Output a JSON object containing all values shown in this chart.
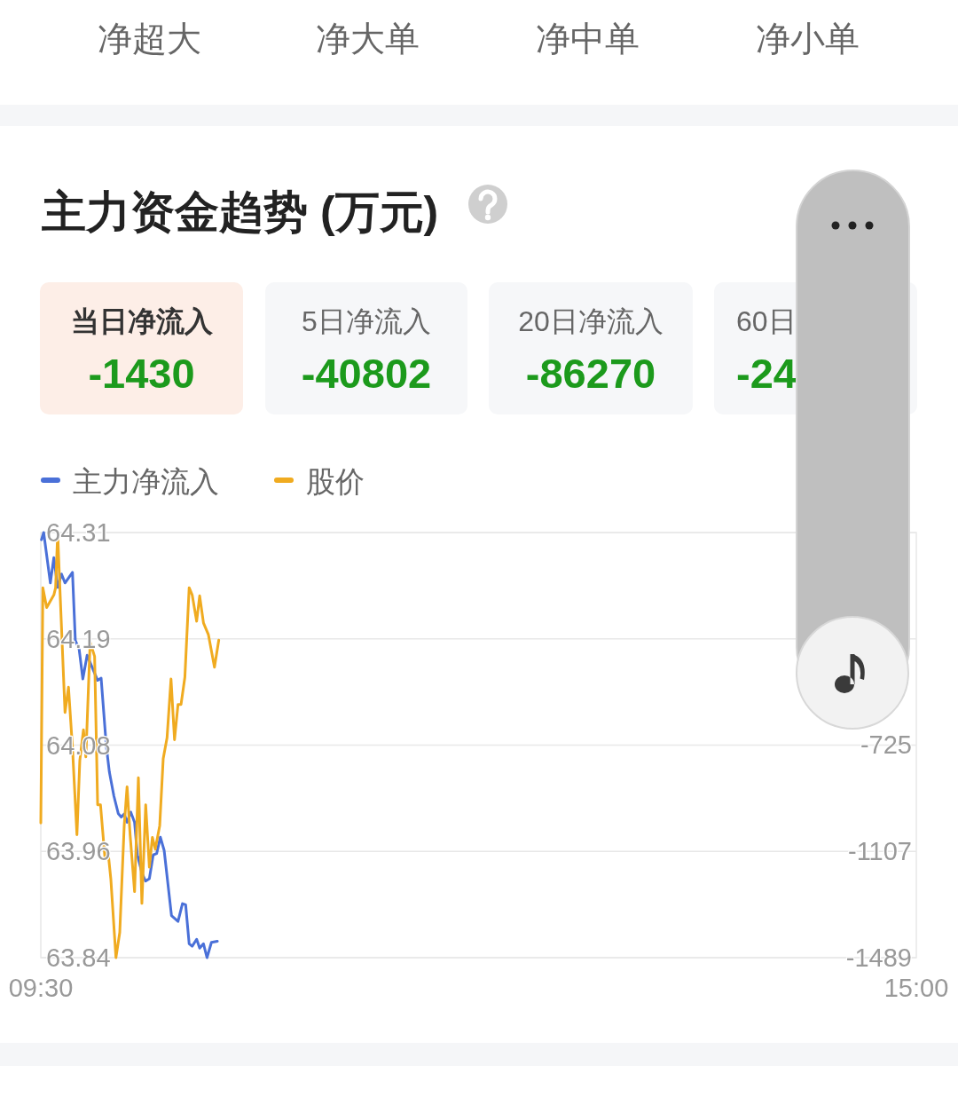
{
  "chart_data": {
    "type": "line",
    "title": "主力资金趋势 (万元)",
    "annotations": [
      "净超大",
      "净大单",
      "净中单",
      "净小单",
      "当日净流入",
      "-1430",
      "5日净流入",
      "-40802",
      "20日净流入",
      "-86270",
      "60日",
      "-24"
    ],
    "xlim": [
      9.5,
      15
    ],
    "xticks": [
      {
        "value": 9.5,
        "label": "09:30"
      },
      {
        "value": 15,
        "label": "15:00"
      }
    ],
    "ylim": [
      63.84,
      64.31
    ],
    "yticks": [
      63.84,
      {
        "value": 63.9575,
        "label": "63.96"
      },
      {
        "value": 64.075,
        "label": "64.08"
      },
      {
        "value": 64.1925,
        "label": "64.19"
      },
      64.31
    ],
    "y2lim": [
      -1489,
      38
    ],
    "y2ticks": [
      -1489,
      -1107,
      -725
    ],
    "grid": "y",
    "legend": "top left",
    "series": [
      {
        "name": "主力净流入",
        "color": "#4a70d8",
        "axis": "y2",
        "x": [
          9.504,
          9.518,
          9.56,
          9.582,
          9.606,
          9.63,
          9.652,
          9.699,
          9.717,
          9.741,
          9.764,
          9.791,
          9.857,
          9.879,
          9.912,
          9.931,
          9.959,
          9.987,
          10.005,
          10.024,
          10.042,
          10.065,
          10.089,
          10.107,
          10.135,
          10.158,
          10.182,
          10.206,
          10.228,
          10.251,
          10.275,
          10.321,
          10.362,
          10.39,
          10.41,
          10.432,
          10.451,
          10.479,
          10.498,
          10.522,
          10.544,
          10.572,
          10.609
        ],
        "values": [
          12,
          38,
          -143,
          -52,
          -159,
          -111,
          -143,
          -105,
          -350,
          -382,
          -488,
          -403,
          -493,
          -485,
          -732,
          -823,
          -908,
          -972,
          -984,
          -973,
          -1003,
          -966,
          -1003,
          -1120,
          -1184,
          -1214,
          -1205,
          -1120,
          -1115,
          -1056,
          -1104,
          -1338,
          -1359,
          -1295,
          -1299,
          -1439,
          -1448,
          -1423,
          -1455,
          -1439,
          -1489,
          -1434,
          -1430
        ]
      },
      {
        "name": "股价",
        "color": "#f0ab20",
        "x": [
          9.5,
          9.513,
          9.537,
          9.582,
          9.593,
          9.606,
          9.617,
          9.652,
          9.674,
          9.699,
          9.727,
          9.745,
          9.768,
          9.783,
          9.81,
          9.838,
          9.857,
          9.875,
          9.903,
          9.922,
          9.94,
          9.972,
          9.996,
          10.024,
          10.042,
          10.061,
          10.089,
          10.113,
          10.135,
          10.159,
          10.182,
          10.201,
          10.219,
          10.247,
          10.269,
          10.293,
          10.318,
          10.34,
          10.362,
          10.381,
          10.405,
          10.432,
          10.451,
          10.479,
          10.498,
          10.522,
          10.553,
          10.591,
          10.618
        ],
        "values": [
          63.989,
          64.249,
          64.227,
          64.241,
          64.249,
          64.31,
          64.261,
          64.111,
          64.139,
          64.072,
          63.976,
          64.058,
          64.092,
          64.062,
          64.189,
          64.173,
          64.009,
          64.009,
          63.95,
          63.958,
          63.927,
          63.84,
          63.868,
          63.986,
          64.029,
          63.976,
          63.913,
          64.039,
          63.9,
          64.009,
          63.94,
          63.973,
          63.96,
          63.986,
          64.06,
          64.083,
          64.148,
          64.081,
          64.12,
          64.12,
          64.15,
          64.249,
          64.241,
          64.212,
          64.24,
          64.21,
          64.197,
          64.161,
          64.191
        ]
      }
    ]
  }
}
